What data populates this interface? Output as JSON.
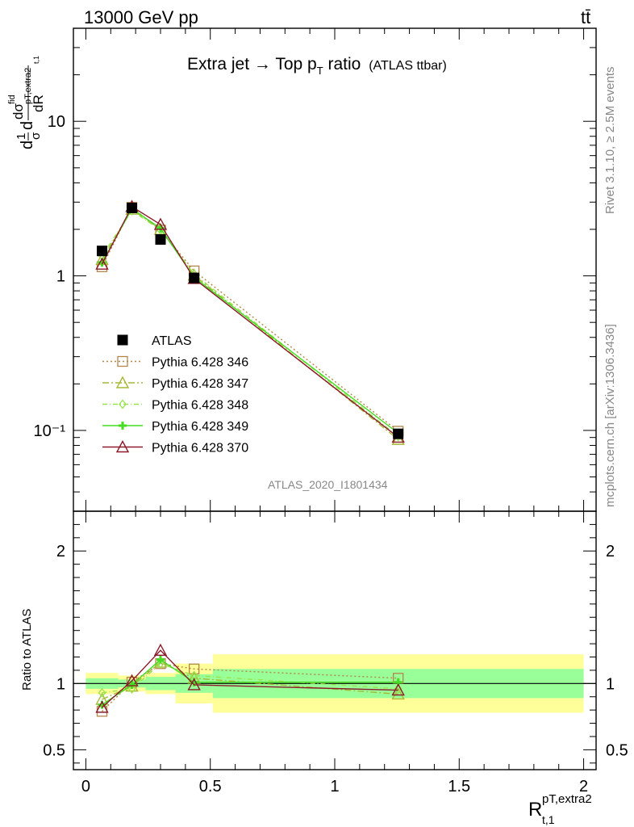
{
  "header": {
    "energy_label": "13000 GeV pp",
    "process_label": "tt̄",
    "side_text_top": "Rivet 3.1.10, ≥ 2.5M events",
    "side_text_bottom": "mcplots.cern.ch [arXiv:1306.3436]"
  },
  "plot": {
    "title": "Extra jet → Top p",
    "title_sub": "T",
    "title_tail": " ratio",
    "title_small": "(ATLAS ttbar)",
    "analysis_tag": "ATLAS_2020_I1801434",
    "ylabel_main": "dσ/dR (normalized)",
    "ylabel_ratio": "Ratio to ATLAS",
    "xlabel": "R",
    "xlabel_sup": "pT,extra2",
    "xlabel_sub": "t,1"
  },
  "chart_data": {
    "type": "line",
    "x_ticks": [
      "0",
      "0.5",
      "1",
      "1.5",
      "2"
    ],
    "xlim": [
      -0.05,
      2.05
    ],
    "main": {
      "yscale": "log",
      "ylim": [
        0.03,
        40
      ],
      "y_ticks": [
        "10⁻¹",
        "1",
        "10"
      ]
    },
    "ratio": {
      "ylim": [
        0.35,
        2.3
      ],
      "y_ticks": [
        "0.5",
        "1",
        "2"
      ]
    },
    "bins": [
      {
        "x": 0.065,
        "lo": 0.0,
        "hi": 0.13
      },
      {
        "x": 0.185,
        "lo": 0.13,
        "hi": 0.24
      },
      {
        "x": 0.3,
        "lo": 0.24,
        "hi": 0.36
      },
      {
        "x": 0.435,
        "lo": 0.36,
        "hi": 0.51
      },
      {
        "x": 1.255,
        "lo": 0.51,
        "hi": 2.0
      }
    ],
    "data": {
      "name": "ATLAS",
      "values": [
        1.45,
        2.75,
        1.72,
        0.97,
        0.095
      ],
      "band_inner": [
        0.04,
        0.03,
        0.05,
        0.07,
        0.11
      ],
      "band_outer": [
        0.08,
        0.06,
        0.08,
        0.15,
        0.22
      ]
    },
    "series": [
      {
        "name": "Pythia 6.428 346",
        "color": "#b5854a",
        "marker": "square",
        "dash": "2,3",
        "ratio": [
          0.79,
          1.01,
          1.15,
          1.11,
          1.04
        ]
      },
      {
        "name": "Pythia 6.428 347",
        "color": "#a6b836",
        "marker": "triangle",
        "dash": "8,3,2,3",
        "ratio": [
          0.88,
          0.98,
          1.16,
          1.04,
          0.92
        ]
      },
      {
        "name": "Pythia 6.428 348",
        "color": "#99e34d",
        "marker": "diamond",
        "dash": "6,3,1,3",
        "ratio": [
          0.93,
          0.96,
          1.15,
          1.06,
          0.96
        ]
      },
      {
        "name": "Pythia 6.428 349",
        "color": "#44dd22",
        "marker": "cross",
        "dash": "",
        "ratio": [
          0.84,
          0.99,
          1.18,
          1.01,
          1.01
        ]
      },
      {
        "name": "Pythia 6.428 370",
        "color": "#8b1a2a",
        "marker": "triangle",
        "dash": "",
        "ratio": [
          0.82,
          1.02,
          1.25,
          0.99,
          0.95
        ]
      }
    ]
  }
}
